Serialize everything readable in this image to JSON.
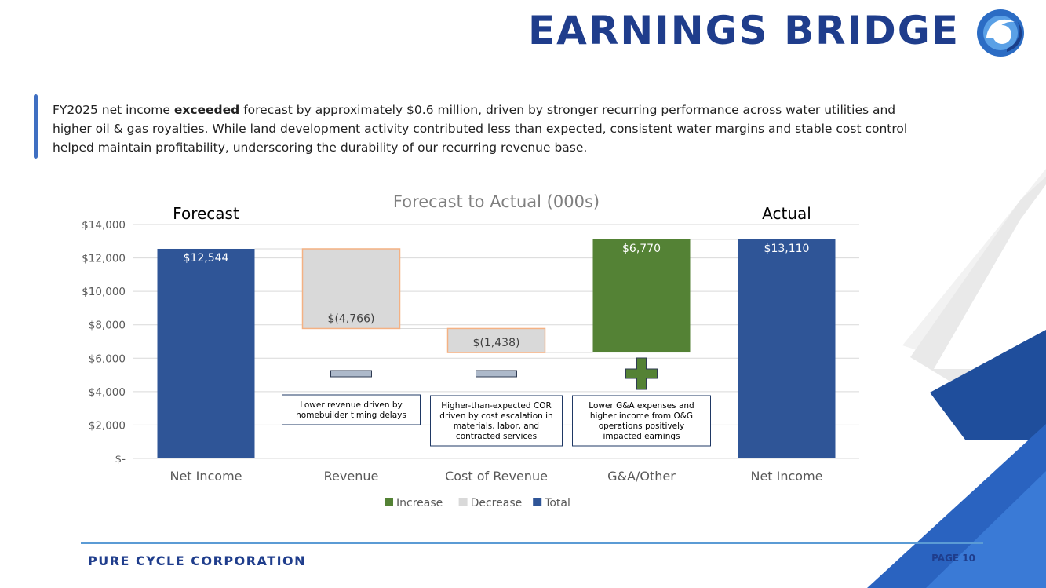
{
  "slide": {
    "title": "EARNINGS BRIDGE",
    "summary_before": "FY2025 net income ",
    "summary_emphasis": "exceeded",
    "summary_after": " forecast by approximately $0.6 million, driven by stronger recurring performance across water utilities and higher oil & gas royalties. While land development activity contributed less than expected, consistent water margins and stable cost control helped maintain profitability, underscoring the durability of our recurring revenue base.",
    "company": "PURE CYCLE CORPORATION",
    "page": "PAGE 10"
  },
  "colors": {
    "brand": "#1f3d8c",
    "total": "#2f5597",
    "decrease": "#d9d9d9",
    "decrease_border": "#f4b183",
    "increase": "#548235",
    "grid": "#d9d9d9"
  },
  "chart_data": {
    "type": "bar",
    "subtype": "waterfall",
    "title": "Forecast to Actual (000s)",
    "categories": [
      "Net Income",
      "Revenue",
      "Cost of Revenue",
      "G&A/Other",
      "Net Income"
    ],
    "bars": [
      {
        "category": "Net Income",
        "kind": "total",
        "low": 0,
        "high": 12544,
        "label": "$12,544"
      },
      {
        "category": "Revenue",
        "kind": "decrease",
        "low": 7778,
        "high": 12544,
        "label": "$(4,766)"
      },
      {
        "category": "Cost of Revenue",
        "kind": "decrease",
        "low": 6340,
        "high": 7778,
        "label": "$(1,438)"
      },
      {
        "category": "G&A/Other",
        "kind": "increase",
        "low": 6340,
        "high": 13110,
        "label": "$6,770"
      },
      {
        "category": "Net Income",
        "kind": "total",
        "low": 0,
        "high": 13110,
        "label": "$13,110"
      }
    ],
    "ylim": [
      0,
      14000
    ],
    "yticks": [
      0,
      2000,
      4000,
      6000,
      8000,
      10000,
      12000,
      14000
    ],
    "ytick_labels": [
      "$-",
      "$2,000",
      "$4,000",
      "$6,000",
      "$8,000",
      "$10,000",
      "$12,000",
      "$14,000"
    ],
    "grid": true,
    "legend": [
      "Increase",
      "Decrease",
      "Total"
    ],
    "legend_position": "bottom",
    "overlay_labels": {
      "left": "Forecast",
      "right": "Actual"
    },
    "annotations": [
      {
        "category": "Revenue",
        "symbol": "minus",
        "lines": [
          "Lower revenue driven by",
          "homebuilder timing delays"
        ]
      },
      {
        "category": "Cost of Revenue",
        "symbol": "minus",
        "lines": [
          "Higher-than-expected COR",
          "driven by cost escalation in",
          "materials, labor, and",
          "contracted services"
        ]
      },
      {
        "category": "G&A/Other",
        "symbol": "plus",
        "lines": [
          "Lower G&A expenses and",
          "higher income from O&G",
          "operations positively",
          "impacted earnings"
        ]
      }
    ]
  }
}
